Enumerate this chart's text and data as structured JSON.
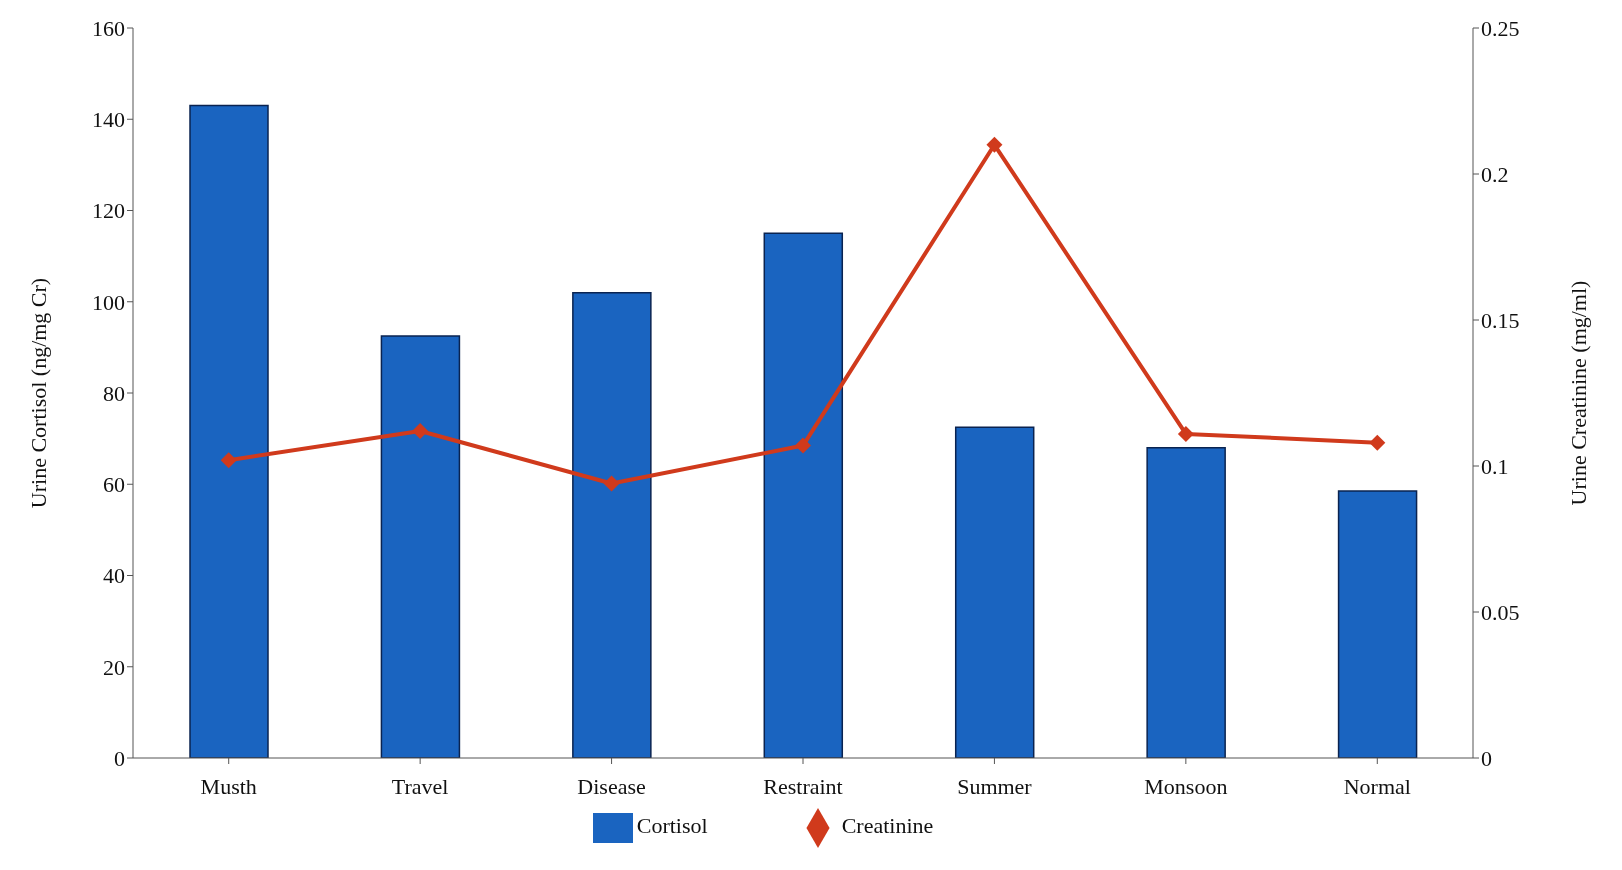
{
  "chart_data": {
    "type": "bar",
    "categories": [
      "Musth",
      "Travel",
      "Disease",
      "Restraint",
      "Summer",
      "Monsoon",
      "Normal"
    ],
    "series": [
      {
        "name": "Cortisol",
        "color": "#1a64c0",
        "values": [
          143,
          92.5,
          102,
          115,
          72.5,
          68,
          58.5
        ]
      },
      {
        "name": "Creatinine",
        "type": "line",
        "axis": "y2",
        "color": "#d03a1c",
        "values": [
          0.102,
          0.112,
          0.094,
          0.107,
          0.21,
          0.111,
          0.108
        ]
      }
    ],
    "ylabel": "Urine Cortisol (ng/mg Cr)",
    "y2label": "Urine Creatinine (mg/ml)",
    "ylim": [
      0,
      160
    ],
    "yticks": [
      0,
      20,
      40,
      60,
      80,
      100,
      120,
      140,
      160
    ],
    "y2lim": [
      0,
      0.25
    ],
    "y2ticks": [
      0,
      0.05,
      {
        "value": 0.1,
        "label": "0.1"
      },
      0.15,
      {
        "value": 0.2,
        "label": "0.2"
      },
      0.25
    ],
    "grid": false,
    "legend": "bottom",
    "marker": "diamond",
    "line_style": "solid"
  }
}
